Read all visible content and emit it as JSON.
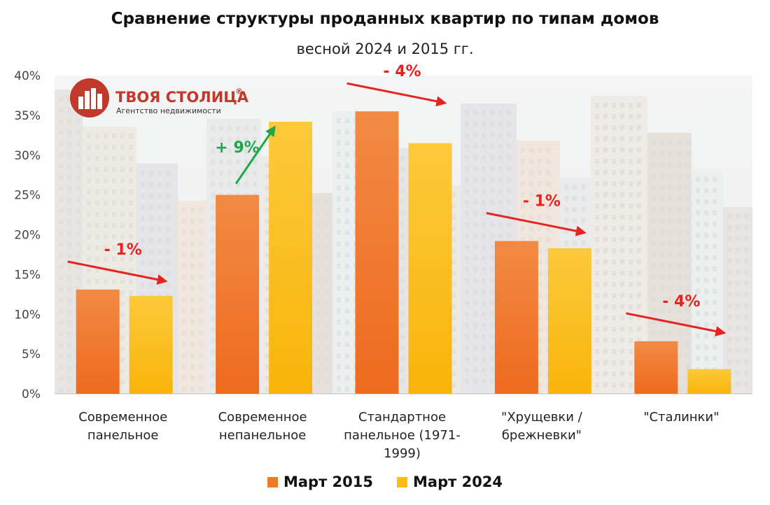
{
  "title": "Сравнение структуры проданных квартир по типам домов",
  "subtitle": "весной 2024 и 2015 гг.",
  "logo": {
    "name": "ТВОЯ СТОЛИЦА",
    "mark": "®",
    "tagline": "Агентство недвижимости",
    "color": "#c0392b"
  },
  "colors": {
    "series_2015": "#f07a2a",
    "series_2024": "#fbbd14",
    "arrow_down": "#e8231f",
    "arrow_up": "#1aa84a",
    "axis_text": "#444444"
  },
  "chart_data": {
    "type": "bar",
    "categories": [
      [
        "Современное",
        "панельное"
      ],
      [
        "Современное",
        "непанельное"
      ],
      [
        "Стандартное",
        "панельное (1971-",
        "1999)"
      ],
      [
        "\"Хрущевки /",
        "брежневки\""
      ],
      [
        "\"Сталинки\""
      ]
    ],
    "series": [
      {
        "name": "Март 2015",
        "values": [
          13.1,
          25.0,
          35.5,
          19.2,
          6.6
        ]
      },
      {
        "name": "Март 2024",
        "values": [
          12.3,
          34.2,
          31.5,
          18.3,
          3.1
        ]
      }
    ],
    "ylim": [
      0,
      40
    ],
    "yticks": [
      "0%",
      "5%",
      "10%",
      "15%",
      "20%",
      "25%",
      "30%",
      "35%",
      "40%"
    ],
    "ytick_values": [
      0,
      5,
      10,
      15,
      20,
      25,
      30,
      35,
      40
    ],
    "annotations": [
      {
        "category": 0,
        "label": "- 1%",
        "direction": "down"
      },
      {
        "category": 1,
        "label": "+ 9%",
        "direction": "up"
      },
      {
        "category": 2,
        "label": "- 4%",
        "direction": "down"
      },
      {
        "category": 3,
        "label": "- 1%",
        "direction": "down"
      },
      {
        "category": 4,
        "label": "- 4%",
        "direction": "down"
      }
    ],
    "legend_position": "bottom",
    "grid": false
  }
}
